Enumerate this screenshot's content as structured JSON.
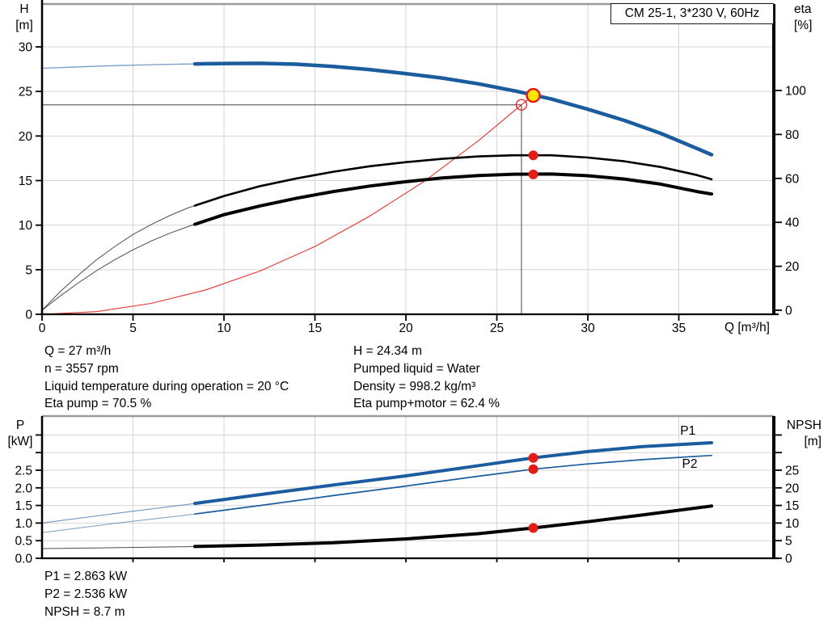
{
  "title_box": {
    "label": "CM 25-1, 3*230 V, 60Hz"
  },
  "colors": {
    "blue": "#1b5c9e",
    "red": "#e21d17",
    "yellow": "#ffe600",
    "black": "#000000",
    "grid": "#d4d4d4",
    "ref_line": "#666666",
    "border_gray": "#9b9b9b",
    "text": "#000000"
  },
  "axis_titles": {
    "h": "H",
    "h_unit": "[m]",
    "eta": "eta",
    "eta_unit": "[%]",
    "q": "Q [m³/h]",
    "p": "P",
    "p_unit": "[kW]",
    "npsh": "NPSH",
    "npsh_unit": "[m]"
  },
  "annotations": {
    "duty_left": [
      "Q = 27 m³/h",
      "n = 3557 rpm",
      "Liquid temperature during operation = 20 °C",
      "Eta pump = 70.5 %"
    ],
    "duty_right": [
      "H = 24.34 m",
      "Pumped liquid = Water",
      "Density = 998.2 kg/m³",
      "Eta pump+motor = 62.4 %"
    ],
    "power": [
      "P1 = 2.863 kW",
      "P2 = 2.536 kW",
      "NPSH = 8.7 m"
    ]
  },
  "chart_data": [
    {
      "id": "qh-eta",
      "type": "line",
      "title": "CM 25-1, 3*230 V, 60Hz",
      "xlabel": "Q [m³/h]",
      "ylabel_left": "H [m]",
      "ylabel_right": "eta [%]",
      "xlim": [
        0,
        40.2
      ],
      "ylim_left": [
        0,
        34.8
      ],
      "ylim_right": [
        0,
        100
      ],
      "x_ticks": [
        {
          "v": 0,
          "l": "0"
        },
        {
          "v": 5,
          "l": "5"
        },
        {
          "v": 10,
          "l": "10"
        },
        {
          "v": 15,
          "l": "15"
        },
        {
          "v": 20,
          "l": "20"
        },
        {
          "v": 25,
          "l": "25"
        },
        {
          "v": 30,
          "l": "30"
        },
        {
          "v": 35,
          "l": "35"
        }
      ],
      "left_ticks": [
        {
          "v": 0,
          "l": "0"
        },
        {
          "v": 5,
          "l": "5"
        },
        {
          "v": 10,
          "l": "10"
        },
        {
          "v": 15,
          "l": "15"
        },
        {
          "v": 20,
          "l": "20"
        },
        {
          "v": 25,
          "l": "25"
        },
        {
          "v": 30,
          "l": "30"
        }
      ],
      "right_ticks": [
        {
          "v": 0,
          "l": "0"
        },
        {
          "v": 20,
          "l": "20"
        },
        {
          "v": 40,
          "l": "40"
        },
        {
          "v": 60,
          "l": "60"
        },
        {
          "v": 80,
          "l": "80"
        },
        {
          "v": 100,
          "l": "100"
        }
      ],
      "ref_lines": [
        {
          "x1": 0,
          "y1": 23.5,
          "x2": 26.35,
          "y2": 23.5
        },
        {
          "x1": 26.35,
          "y1": 23.5,
          "x2": 26.35,
          "y2": 0
        }
      ],
      "series": [
        {
          "name": "system-curve",
          "color": "red",
          "axis": "left",
          "width": 1.1,
          "thin_opacity": 0.9,
          "points": [
            [
              0,
              0
            ],
            [
              3,
              0.3
            ],
            [
              6,
              1.22
            ],
            [
              9,
              2.74
            ],
            [
              12,
              4.87
            ],
            [
              15,
              7.6
            ],
            [
              18,
              11.0
            ],
            [
              21,
              14.9
            ],
            [
              24,
              19.5
            ],
            [
              26.35,
              23.5
            ],
            [
              27,
              24.55
            ]
          ]
        },
        {
          "name": "eta-pump",
          "color": "black",
          "axis": "right",
          "width": 2.6,
          "thin_width": 1,
          "thin_opacity": 0.7,
          "split_x": 8.4,
          "points": [
            [
              0,
              0
            ],
            [
              1,
              8.5
            ],
            [
              2,
              16
            ],
            [
              3,
              23
            ],
            [
              4,
              29
            ],
            [
              5,
              34.5
            ],
            [
              6,
              39
            ],
            [
              7,
              43
            ],
            [
              8,
              46.5
            ],
            [
              10,
              52
            ],
            [
              12,
              56.5
            ],
            [
              14,
              60
            ],
            [
              16,
              63
            ],
            [
              18,
              65.5
            ],
            [
              20,
              67.4
            ],
            [
              22,
              68.9
            ],
            [
              24,
              70
            ],
            [
              26,
              70.5
            ],
            [
              28,
              70.5
            ],
            [
              30,
              69.5
            ],
            [
              32,
              67.8
            ],
            [
              34,
              65.2
            ],
            [
              36,
              61.5
            ],
            [
              36.8,
              59.6
            ]
          ]
        },
        {
          "name": "eta-pump-motor",
          "color": "black",
          "axis": "right",
          "width": 4,
          "thin_width": 1,
          "thin_opacity": 0.7,
          "split_x": 8.4,
          "points": [
            [
              0,
              0
            ],
            [
              1,
              6.5
            ],
            [
              2,
              12.5
            ],
            [
              3,
              18
            ],
            [
              4,
              23
            ],
            [
              5,
              27.5
            ],
            [
              6,
              31.5
            ],
            [
              7,
              35
            ],
            [
              8,
              38
            ],
            [
              10,
              43.5
            ],
            [
              12,
              47.5
            ],
            [
              14,
              51
            ],
            [
              16,
              54
            ],
            [
              18,
              56.5
            ],
            [
              20,
              58.5
            ],
            [
              22,
              60.2
            ],
            [
              24,
              61.3
            ],
            [
              26,
              61.9
            ],
            [
              28,
              62
            ],
            [
              30,
              61.2
            ],
            [
              32,
              59.7
            ],
            [
              34,
              57.4
            ],
            [
              36,
              54
            ],
            [
              36.8,
              52.9
            ]
          ]
        },
        {
          "name": "qh-curve",
          "color": "blue",
          "axis": "left",
          "width": 4.5,
          "thin_width": 1.3,
          "thin_opacity": 0.6,
          "split_x": 8.4,
          "points": [
            [
              0,
              27.6
            ],
            [
              2,
              27.75
            ],
            [
              4,
              27.9
            ],
            [
              6,
              28.0
            ],
            [
              8,
              28.08
            ],
            [
              10,
              28.13
            ],
            [
              12,
              28.15
            ],
            [
              14,
              28.05
            ],
            [
              16,
              27.8
            ],
            [
              18,
              27.45
            ],
            [
              20,
              27.0
            ],
            [
              22,
              26.5
            ],
            [
              24,
              25.85
            ],
            [
              26,
              25.05
            ],
            [
              27,
              24.6
            ],
            [
              28,
              24.15
            ],
            [
              30,
              23.0
            ],
            [
              32,
              21.75
            ],
            [
              34,
              20.3
            ],
            [
              36,
              18.6
            ],
            [
              36.8,
              17.9
            ]
          ]
        }
      ],
      "markers": [
        {
          "name": "requested-duty-point",
          "x": 26.35,
          "y": 23.5,
          "axis": "left",
          "r": 6.5,
          "fill": "none",
          "stroke": "red",
          "sw": 1.3
        },
        {
          "name": "eta-pump-point",
          "x": 27,
          "y": 70.5,
          "axis": "right",
          "r": 6,
          "fill": "red"
        },
        {
          "name": "eta-pump-motor-point",
          "x": 27,
          "y": 61.8,
          "axis": "right",
          "r": 6,
          "fill": "red"
        },
        {
          "name": "duty-point",
          "x": 27,
          "y": 24.55,
          "axis": "left",
          "r": 8,
          "fill": "yellow",
          "stroke": "red",
          "sw": 2.5
        }
      ]
    },
    {
      "id": "power-npsh",
      "type": "line",
      "xlabel": "Q [m³/h]",
      "ylabel_left": "P [kW]",
      "ylabel_right": "NPSH [m]",
      "xlim": [
        0,
        40.2
      ],
      "ylim_left": [
        0,
        4.04
      ],
      "ylim_right": [
        0,
        40.4
      ],
      "x_ticks": [
        {
          "v": 5,
          "l": ""
        },
        {
          "v": 10,
          "l": ""
        },
        {
          "v": 15,
          "l": ""
        },
        {
          "v": 20,
          "l": ""
        },
        {
          "v": 25,
          "l": ""
        },
        {
          "v": 30,
          "l": ""
        },
        {
          "v": 35,
          "l": ""
        }
      ],
      "left_ticks": [
        {
          "v": 0,
          "l": "0.0"
        },
        {
          "v": 0.5,
          "l": "0.5"
        },
        {
          "v": 1.0,
          "l": "1.0"
        },
        {
          "v": 1.5,
          "l": "1.5"
        },
        {
          "v": 2.0,
          "l": "2.0"
        },
        {
          "v": 2.5,
          "l": "2.5"
        },
        {
          "v": 3.0,
          "l": ""
        },
        {
          "v": 3.5,
          "l": ""
        }
      ],
      "right_ticks": [
        {
          "v": 0,
          "l": "0"
        },
        {
          "v": 5,
          "l": "5"
        },
        {
          "v": 10,
          "l": "10"
        },
        {
          "v": 15,
          "l": "15"
        },
        {
          "v": 20,
          "l": "20"
        },
        {
          "v": 25,
          "l": "25"
        },
        {
          "v": 30,
          "l": ""
        },
        {
          "v": 35,
          "l": ""
        }
      ],
      "series": [
        {
          "name": "npsh-curve",
          "color": "black",
          "axis": "right",
          "width": 4,
          "thin_width": 1,
          "thin_opacity": 0.7,
          "split_x": 8.4,
          "points": [
            [
              0,
              2.75
            ],
            [
              4,
              3.0
            ],
            [
              8,
              3.3
            ],
            [
              12,
              3.75
            ],
            [
              16,
              4.4
            ],
            [
              20,
              5.5
            ],
            [
              24,
              7.0
            ],
            [
              27,
              8.6
            ],
            [
              30,
              10.4
            ],
            [
              33,
              12.3
            ],
            [
              36.8,
              14.85
            ]
          ]
        },
        {
          "name": "p2-curve",
          "color": "blue",
          "axis": "left",
          "width": 1.7,
          "thin_width": 1,
          "thin_opacity": 0.6,
          "split_x": 8.4,
          "points": [
            [
              0,
              0.73
            ],
            [
              4,
              0.99
            ],
            [
              8,
              1.23
            ],
            [
              12,
              1.5
            ],
            [
              16,
              1.78
            ],
            [
              20,
              2.05
            ],
            [
              24,
              2.33
            ],
            [
              27,
              2.53
            ],
            [
              30,
              2.68
            ],
            [
              33,
              2.8
            ],
            [
              36.8,
              2.92
            ]
          ]
        },
        {
          "name": "p1-curve",
          "color": "blue",
          "axis": "left",
          "width": 4,
          "thin_width": 1.2,
          "thin_opacity": 0.6,
          "split_x": 8.4,
          "points": [
            [
              0,
              1.0
            ],
            [
              4,
              1.27
            ],
            [
              8,
              1.53
            ],
            [
              12,
              1.81
            ],
            [
              16,
              2.08
            ],
            [
              20,
              2.34
            ],
            [
              24,
              2.63
            ],
            [
              27,
              2.85
            ],
            [
              30,
              3.03
            ],
            [
              33,
              3.17
            ],
            [
              36.8,
              3.28
            ]
          ]
        }
      ],
      "markers": [
        {
          "name": "p1-point",
          "x": 27,
          "y": 2.85,
          "axis": "left",
          "r": 6,
          "fill": "red"
        },
        {
          "name": "p2-point",
          "x": 27,
          "y": 2.53,
          "axis": "left",
          "r": 6,
          "fill": "red"
        },
        {
          "name": "npsh-point",
          "x": 27,
          "y": 8.6,
          "axis": "right",
          "r": 6,
          "fill": "red"
        }
      ],
      "series_labels": [
        {
          "text": "P1",
          "x": 35.5,
          "y": 3.62,
          "color": "blue"
        },
        {
          "text": "P2",
          "x": 35.6,
          "y": 2.68,
          "color": "blue"
        }
      ]
    }
  ]
}
